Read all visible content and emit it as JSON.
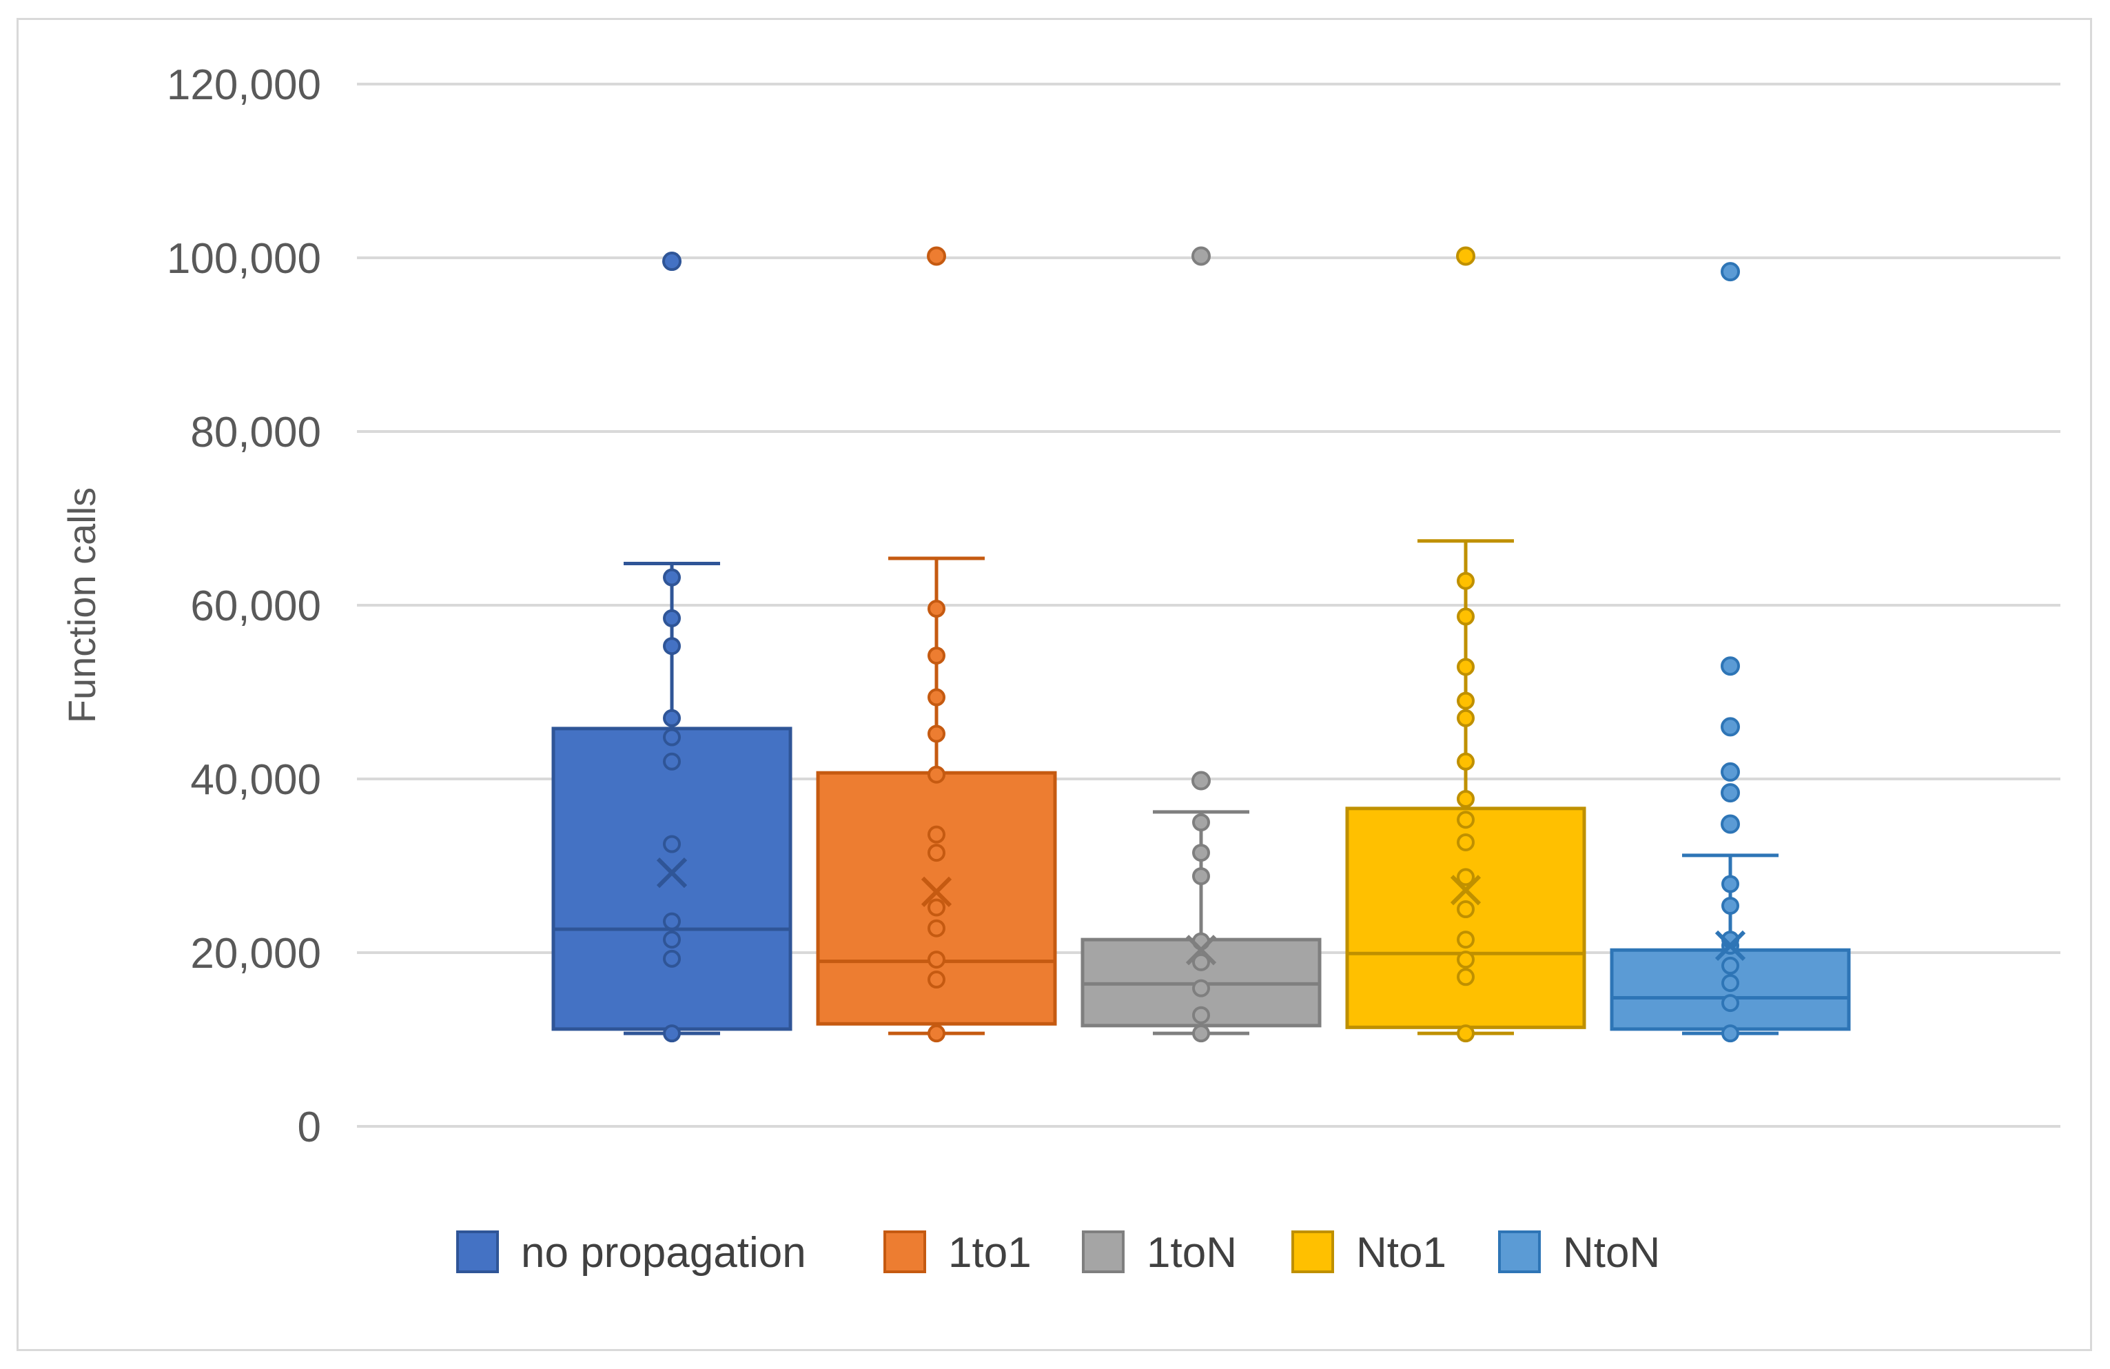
{
  "chart_data": {
    "type": "box",
    "title": "",
    "xlabel": "",
    "ylabel": "Function calls",
    "ylim": [
      0,
      120000
    ],
    "y_ticks": [
      0,
      20000,
      40000,
      60000,
      80000,
      100000,
      120000
    ],
    "y_tick_labels": [
      "0",
      "20,000",
      "40,000",
      "60,000",
      "80,000",
      "100,000",
      "120,000"
    ],
    "grid": true,
    "legend_position": "bottom",
    "series": [
      {
        "name": "no propagation",
        "color": "#4472C4",
        "edge_color": "#2F5597",
        "q1": 11200,
        "median": 22700,
        "q3": 45800,
        "whisker_low": 10700,
        "whisker_high": 64800,
        "mean": 29200,
        "points": [
          10700,
          19300,
          21500,
          23600,
          32500,
          42000,
          44800,
          47000,
          55300,
          58500,
          63200
        ],
        "outliers": [
          99600
        ]
      },
      {
        "name": "1to1",
        "color": "#ED7D31",
        "edge_color": "#C55A11",
        "q1": 11800,
        "median": 19000,
        "q3": 40700,
        "whisker_low": 10700,
        "whisker_high": 65400,
        "mean": 27000,
        "points": [
          10700,
          16900,
          19200,
          22800,
          25200,
          31500,
          33600,
          40500,
          45200,
          49400,
          54200,
          59600
        ],
        "outliers": [
          100200
        ]
      },
      {
        "name": "1toN",
        "color": "#A5A5A5",
        "edge_color": "#7F7F7F",
        "q1": 11600,
        "median": 16400,
        "q3": 21500,
        "whisker_low": 10700,
        "whisker_high": 36200,
        "mean": 20300,
        "points": [
          10700,
          12800,
          15900,
          18900,
          21300,
          28800,
          31500,
          35000
        ],
        "outliers": [
          39800,
          100200
        ]
      },
      {
        "name": "Nto1",
        "color": "#FFC000",
        "edge_color": "#BF9000",
        "q1": 11400,
        "median": 19900,
        "q3": 36600,
        "whisker_low": 10700,
        "whisker_high": 67400,
        "mean": 27200,
        "points": [
          10700,
          17200,
          19200,
          21500,
          25000,
          28700,
          32700,
          35300,
          37700,
          42000,
          47000,
          49000,
          52900,
          58700,
          62800
        ],
        "outliers": [
          100200
        ]
      },
      {
        "name": "NtoN",
        "color": "#5B9BD5",
        "edge_color": "#2E75B6",
        "q1": 11200,
        "median": 14800,
        "q3": 20300,
        "whisker_low": 10700,
        "whisker_high": 31200,
        "mean": 20800,
        "points": [
          10700,
          14200,
          16500,
          18500,
          20800,
          21500,
          25400,
          27900
        ],
        "outliers": [
          34800,
          38400,
          40800,
          46000,
          53000,
          98400
        ]
      }
    ]
  }
}
